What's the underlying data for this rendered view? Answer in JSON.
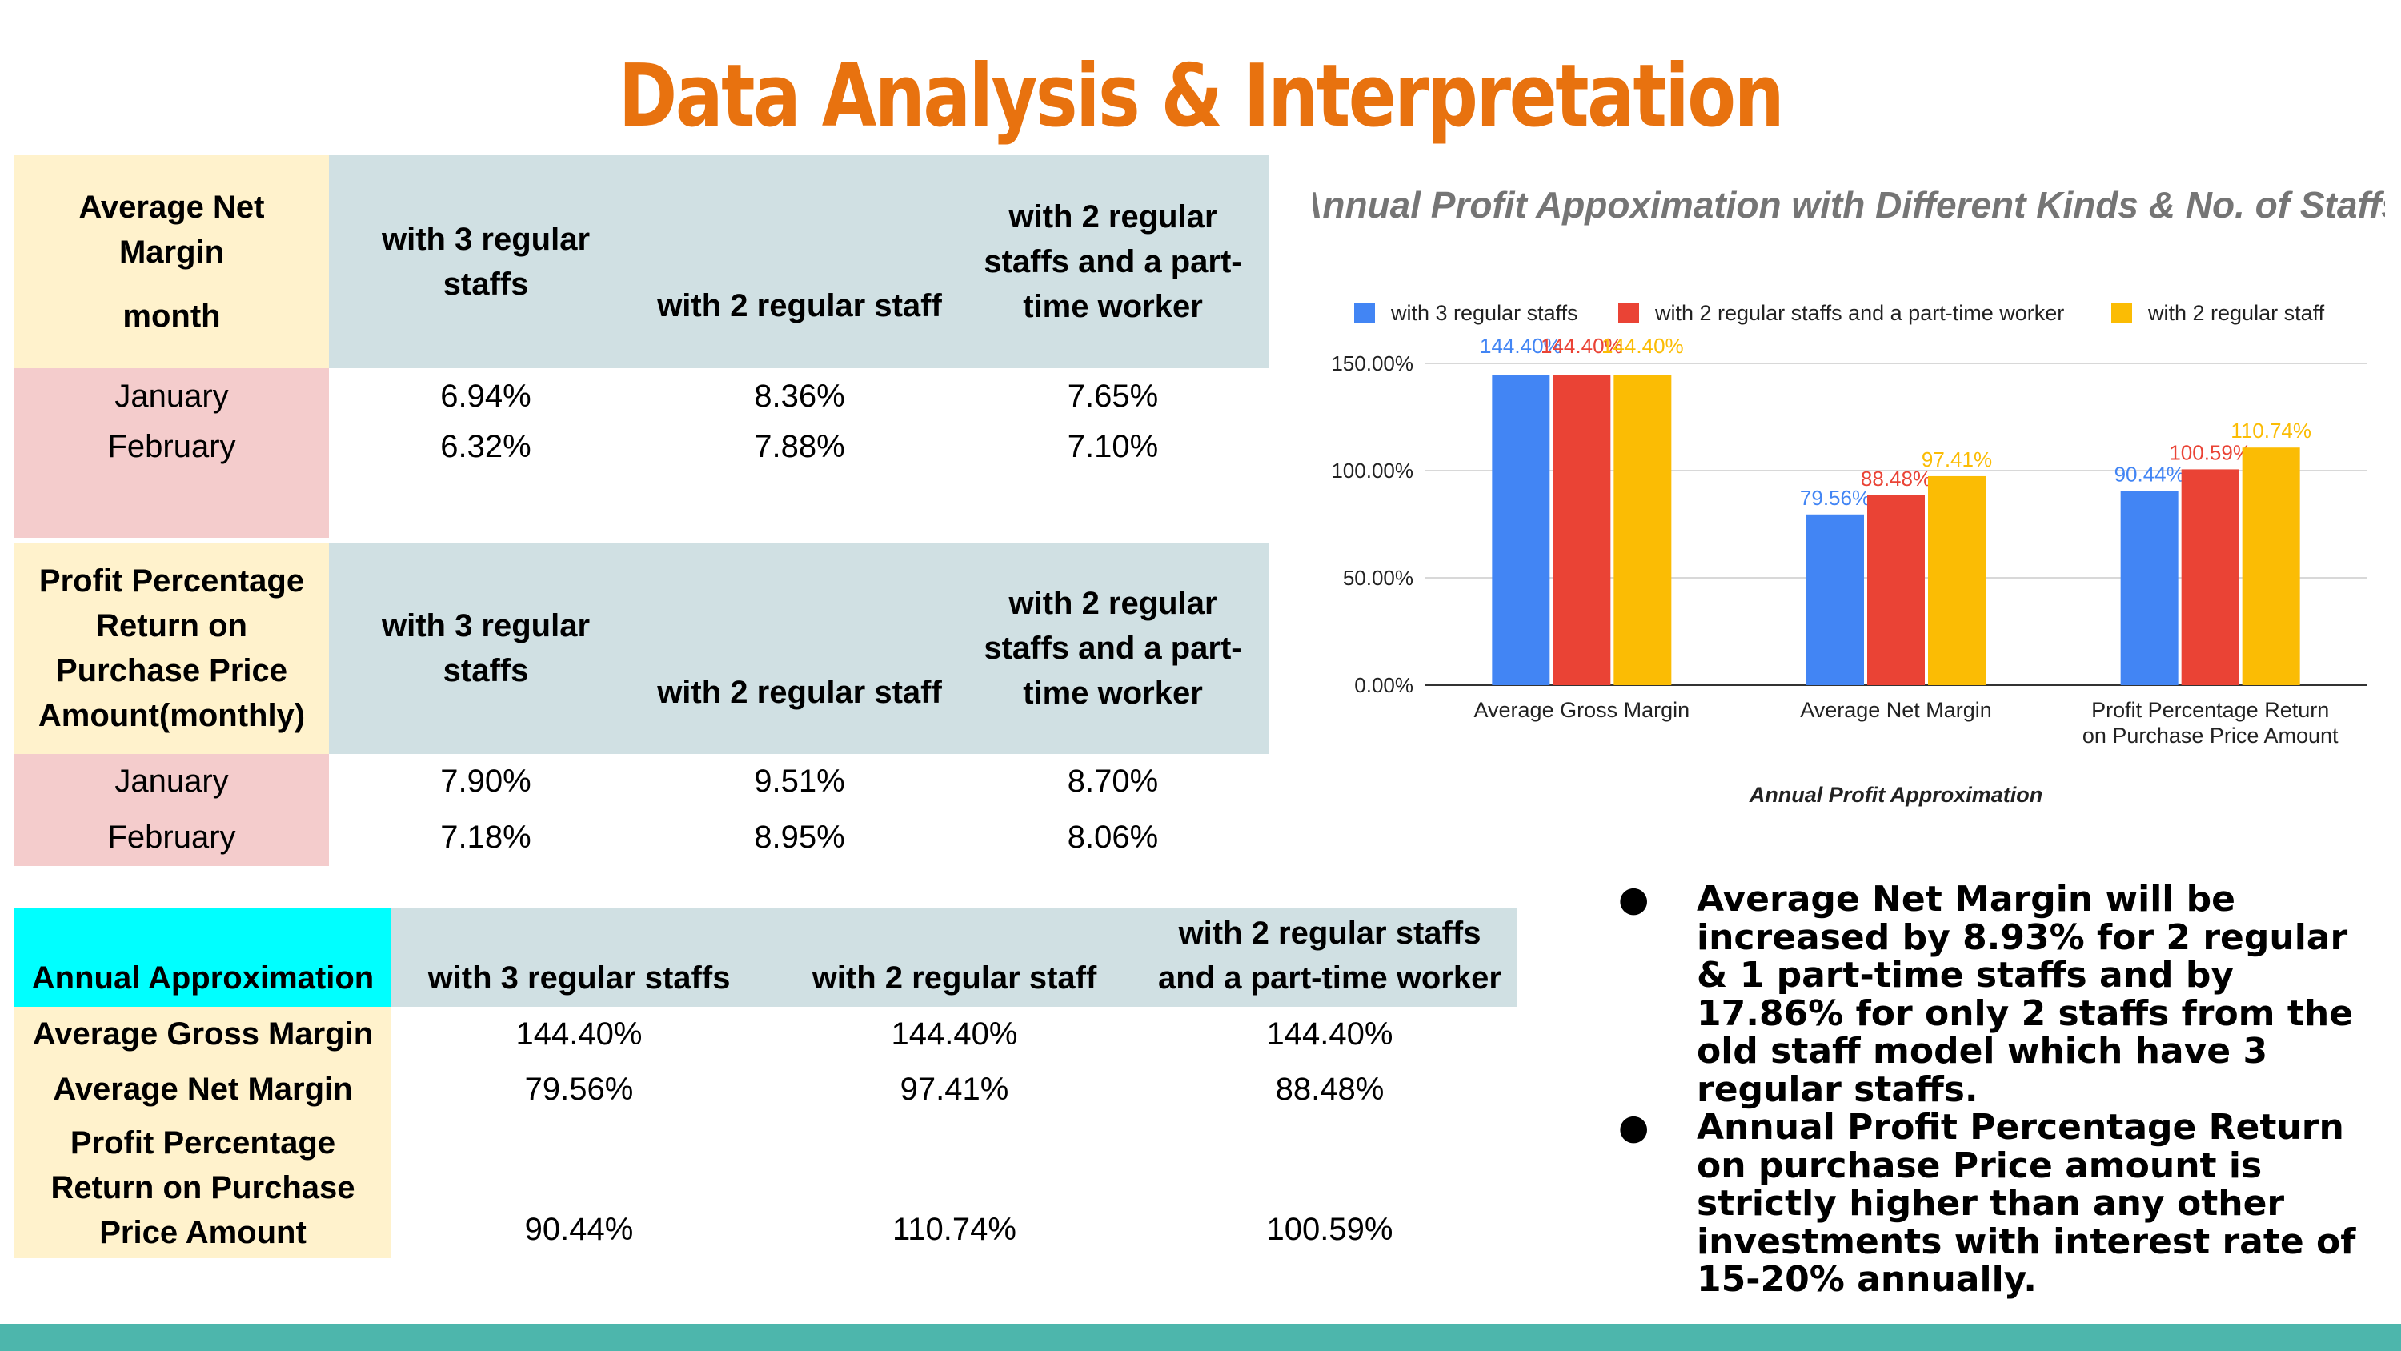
{
  "slide": {
    "title": "Data Analysis & Interpretation",
    "accent_color": "#e8720f",
    "footer_color": "#4db6ac"
  },
  "table_net_margin": {
    "corner_title": "Average Net Margin",
    "corner_sub": "month",
    "headers": [
      "with 3 regular staffs",
      "with 2 regular staff",
      "with 2 regular staffs and a part-time worker"
    ],
    "rows": [
      {
        "label": "January",
        "values": [
          "6.94%",
          "8.36%",
          "7.65%"
        ]
      },
      {
        "label": "February",
        "values": [
          "6.32%",
          "7.88%",
          "7.10%"
        ]
      }
    ]
  },
  "table_profit_return": {
    "corner_title": "Profit Percentage Return on Purchase Price Amount(monthly)",
    "headers": [
      "with 3 regular staffs",
      "with 2 regular staff",
      "with 2 regular staffs and a part-time worker"
    ],
    "rows": [
      {
        "label": "January",
        "values": [
          "7.90%",
          "9.51%",
          "8.70%"
        ]
      },
      {
        "label": "February",
        "values": [
          "7.18%",
          "8.95%",
          "8.06%"
        ]
      }
    ]
  },
  "table_annual": {
    "corner_title": "Annual Approximation",
    "headers": [
      "with 3 regular staffs",
      "with 2 regular staff",
      "with 2 regular staffs and a part-time worker"
    ],
    "rows": [
      {
        "label": "Average Gross Margin",
        "values": [
          "144.40%",
          "144.40%",
          "144.40%"
        ]
      },
      {
        "label": "Average Net Margin",
        "values": [
          "79.56%",
          "97.41%",
          "88.48%"
        ]
      },
      {
        "label": "Profit Percentage Return on Purchase Price Amount",
        "values": [
          "90.44%",
          "110.74%",
          "100.59%"
        ]
      }
    ]
  },
  "chart_data": {
    "type": "bar",
    "title": "Annual Profit Appoximation with Different Kinds & No. of Staffs",
    "xlabel": "Annual Profit  Approximation",
    "ylabel": "",
    "ylim": [
      0,
      150
    ],
    "yticks": [
      "0.00%",
      "50.00%",
      "100.00%",
      "150.00%"
    ],
    "grid": true,
    "legend_position": "top",
    "categories": [
      "Average Gross Margin",
      "Average Net Margin",
      "Profit Percentage Return on Purchase Price Amount"
    ],
    "series": [
      {
        "name": "with 3 regular staffs",
        "color": "#4285f4",
        "values": [
          144.4,
          79.56,
          90.44
        ],
        "labels": [
          "144.40%",
          "79.56%",
          "90.44%"
        ]
      },
      {
        "name": "with 2 regular staffs and a part-time worker",
        "color": "#ea4335",
        "values": [
          144.4,
          88.48,
          100.59
        ],
        "labels": [
          "144.40%",
          "88.48%",
          "100.59%"
        ]
      },
      {
        "name": "with 2 regular staff",
        "color": "#fbbc04",
        "values": [
          144.4,
          97.41,
          110.74
        ],
        "labels": [
          "144.40%",
          "97.41%",
          "110.74%"
        ]
      }
    ]
  },
  "bullets": [
    "Average Net Margin will be increased by 8.93% for 2 regular & 1 part-time staffs and by 17.86% for only 2 staffs from the old staff model which have 3 regular staffs.",
    "Annual Profit Percentage Return on purchase Price amount is strictly higher than any other investments with interest rate of 15-20% annually."
  ],
  "bullet_glyph": "●"
}
